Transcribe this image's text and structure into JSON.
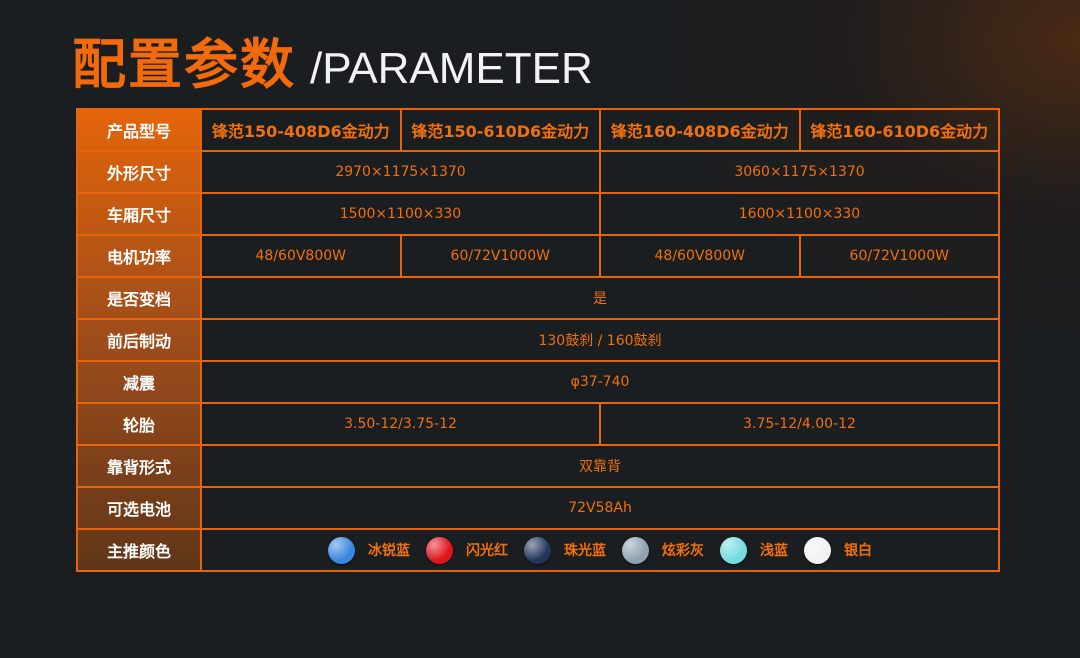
{
  "title": {
    "cn": "配置参数",
    "en": "/PARAMETER"
  },
  "rows": {
    "model": {
      "label": "产品型号",
      "values": [
        "锋范150-408D6金动力",
        "锋范150-610D6金动力",
        "锋范160-408D6金动力",
        "锋范160-610D6金动力"
      ]
    },
    "size": {
      "label": "外形尺寸",
      "values": [
        "2970×1175×1370",
        "3060×1175×1370"
      ]
    },
    "cargo": {
      "label": "车厢尺寸",
      "values": [
        "1500×1100×330",
        "1600×1100×330"
      ]
    },
    "motor": {
      "label": "电机功率",
      "values": [
        "48/60V800W",
        "60/72V1000W",
        "48/60V800W",
        "60/72V1000W"
      ]
    },
    "gear": {
      "label": "是否变档",
      "value": "是"
    },
    "brake": {
      "label": "前后制动",
      "value": "130鼓刹 / 160鼓刹"
    },
    "shock": {
      "label": "减震",
      "value": "φ37-740"
    },
    "tire": {
      "label": "轮胎",
      "values": [
        "3.50-12/3.75-12",
        "3.75-12/4.00-12"
      ]
    },
    "seat": {
      "label": "靠背形式",
      "value": "双靠背"
    },
    "battery": {
      "label": "可选电池",
      "value": "72V58Ah"
    },
    "colors": {
      "label": "主推颜色",
      "items": [
        {
          "name": "冰锐蓝",
          "color": "#3a86e0"
        },
        {
          "name": "闪光红",
          "color": "#e0141c"
        },
        {
          "name": "珠光蓝",
          "color": "#22365a"
        },
        {
          "name": "炫彩灰",
          "color": "#8fa2b2"
        },
        {
          "name": "浅蓝",
          "color": "#74dbe0"
        },
        {
          "name": "银白",
          "color": "#f2f2f2"
        }
      ]
    }
  },
  "accent": "#f0700e"
}
